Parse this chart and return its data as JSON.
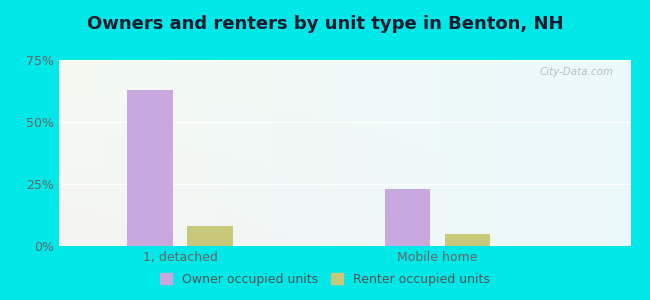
{
  "title": "Owners and renters by unit type in Benton, NH",
  "categories": [
    "1, detached",
    "Mobile home"
  ],
  "owner_values": [
    63.0,
    23.0
  ],
  "renter_values": [
    8.0,
    5.0
  ],
  "owner_color": "#c9a8e0",
  "renter_color": "#c8c87a",
  "ylim": [
    0,
    75
  ],
  "yticks": [
    0,
    25,
    50,
    75
  ],
  "yticklabels": [
    "0%",
    "25%",
    "50%",
    "75%"
  ],
  "bar_width": 0.32,
  "legend_owner": "Owner occupied units",
  "legend_renter": "Renter occupied units",
  "watermark": "City-Data.com",
  "title_fontsize": 13,
  "tick_fontsize": 9,
  "legend_fontsize": 9,
  "fig_bg": "#00e8e8",
  "title_color": "#1a1a2e"
}
